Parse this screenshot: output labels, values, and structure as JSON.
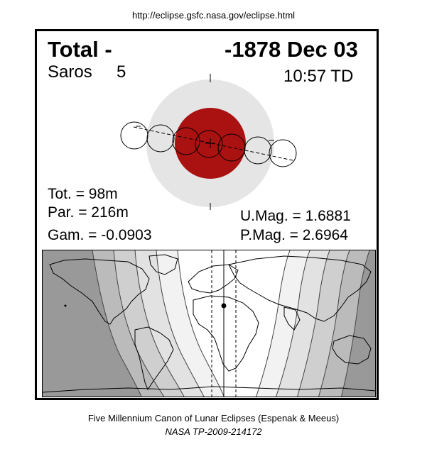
{
  "header": {
    "url": "http://eclipse.gsfc.nasa.gov/eclipse.html"
  },
  "eclipse": {
    "type": "Total  -",
    "date": "-1878 Dec 03",
    "saros_label": "Saros",
    "saros_number": "5",
    "time": "10:57 TD",
    "totality": "Tot. =  98m",
    "partiality": "Par. = 216m",
    "gamma": "Gam. = -0.0903",
    "umbral_mag": "U.Mag. = 1.6881",
    "penumbral_mag": "P.Mag. = 2.6964"
  },
  "colors": {
    "umbra": "#aa1111",
    "penumbra": "#e5e5e5",
    "map_night": "#999999",
    "map_band_1": "#bbbbbb",
    "map_band_2": "#cfcfcf",
    "map_band_3": "#e2e2e2",
    "map_band_4": "#f2f2f2"
  },
  "footer": {
    "line1": "Five Millennium Canon of Lunar Eclipses (Espenak & Meeus)",
    "line2": "NASA TP-2009-214172"
  }
}
